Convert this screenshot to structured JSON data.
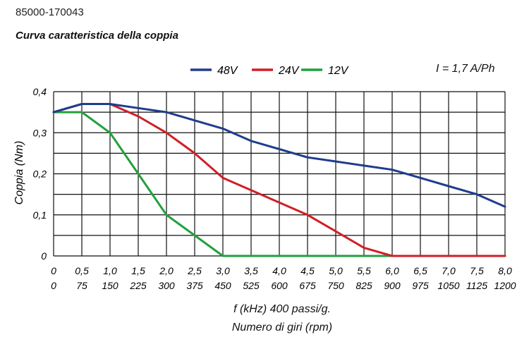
{
  "header": {
    "code": "85000-170043",
    "title": "Curva caratteristica della coppia"
  },
  "legend_note": "I = 1,7 A/Ph",
  "x_label_line1": "f (kHz) 400 passi/g.",
  "x_label_line2": "Numero di giri (rpm)",
  "chart_data": {
    "type": "line",
    "title": "Curva caratteristica della coppia",
    "ylabel": "Coppia (Nm)",
    "xlabel": "f (kHz) 400 passi/g. / Numero di giri (rpm)",
    "xlim": [
      0,
      8.0
    ],
    "ylim": [
      0,
      0.4
    ],
    "grid": true,
    "legend_position": "top",
    "x_ticks_khz": [
      "0",
      "0,5",
      "1,0",
      "1,5",
      "2,0",
      "2,5",
      "3,0",
      "3,5",
      "4,0",
      "4,5",
      "5,0",
      "5,5",
      "6,0",
      "6,5",
      "7,0",
      "7,5",
      "8,0"
    ],
    "x_ticks_rpm": [
      "0",
      "75",
      "150",
      "225",
      "300",
      "375",
      "450",
      "525",
      "600",
      "675",
      "750",
      "825",
      "900",
      "975",
      "1050",
      "1125",
      "1200"
    ],
    "y_ticks": [
      {
        "value": 0,
        "label": "0"
      },
      {
        "value": 0.1,
        "label": "0,1"
      },
      {
        "value": 0.2,
        "label": "0,2"
      },
      {
        "value": 0.3,
        "label": "0,3"
      },
      {
        "value": 0.4,
        "label": "0,4"
      }
    ],
    "series": [
      {
        "name": "48V",
        "color": "#1f3d8c",
        "x": [
          0,
          0.5,
          1.0,
          1.5,
          2.0,
          2.5,
          3.0,
          3.5,
          4.0,
          4.5,
          5.0,
          5.5,
          6.0,
          6.5,
          7.0,
          7.5,
          8.0
        ],
        "y": [
          0.35,
          0.37,
          0.37,
          0.36,
          0.35,
          0.33,
          0.31,
          0.28,
          0.26,
          0.24,
          0.23,
          0.22,
          0.21,
          0.19,
          0.17,
          0.15,
          0.12
        ]
      },
      {
        "name": "24V",
        "color": "#d01f26",
        "x": [
          0,
          0.5,
          1.0,
          1.5,
          2.0,
          2.5,
          3.0,
          3.5,
          4.0,
          4.5,
          5.0,
          5.5,
          6.0,
          6.5,
          7.0,
          7.5,
          8.0
        ],
        "y": [
          0.35,
          0.37,
          0.37,
          0.34,
          0.3,
          0.25,
          0.19,
          0.16,
          0.13,
          0.1,
          0.06,
          0.02,
          0,
          0,
          0,
          0,
          0
        ]
      },
      {
        "name": "12V",
        "color": "#22a03c",
        "x": [
          0,
          0.5,
          1.0,
          1.5,
          2.0,
          2.5,
          3.0,
          3.5,
          4.0,
          4.5,
          5.0,
          5.5,
          6.0,
          6.5,
          7.0,
          7.5,
          8.0
        ],
        "y": [
          0.35,
          0.35,
          0.3,
          0.2,
          0.1,
          0.05,
          0,
          0,
          0,
          0,
          0,
          0,
          0,
          0,
          0,
          0,
          0
        ]
      }
    ]
  }
}
